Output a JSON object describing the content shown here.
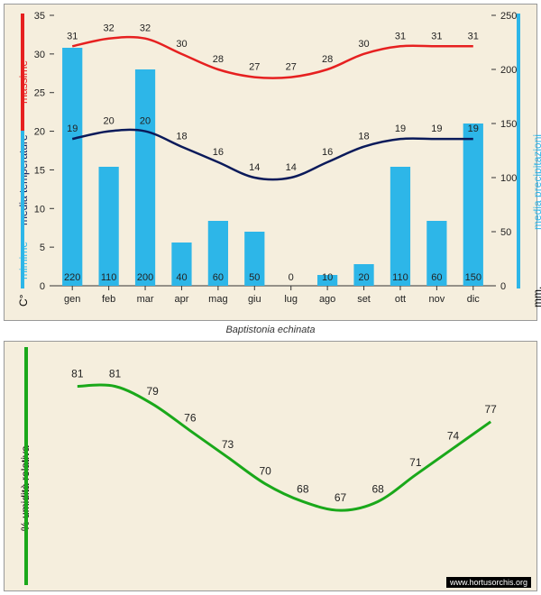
{
  "subtitle": "Baptistonia echinata",
  "watermark": "www.hortusorchis.org",
  "months": [
    "gen",
    "feb",
    "mar",
    "apr",
    "mag",
    "giu",
    "lug",
    "ago",
    "set",
    "ott",
    "nov",
    "dic"
  ],
  "top_chart": {
    "panel_bg": "#f5eedd",
    "max_color": "#e62020",
    "min_color": "#2db6e8",
    "avg_color": "#0a1a5a",
    "bar_color": "#2db6e8",
    "temp_label_c": "C°",
    "temp_label_min": "mimime",
    "temp_label_media": "media  temperature",
    "temp_label_max": "massime",
    "precip_label": "media  precipitazioni",
    "precip_label_mm": "mm.",
    "temp_ylim": [
      0,
      35
    ],
    "temp_ticks": [
      0,
      5,
      10,
      15,
      20,
      25,
      30,
      35
    ],
    "precip_ylim": [
      0,
      250
    ],
    "precip_ticks": [
      0,
      50,
      100,
      150,
      200,
      250
    ],
    "max_temps": [
      31,
      32,
      32,
      30,
      28,
      27,
      27,
      28,
      30,
      31,
      31,
      31
    ],
    "min_temps": [
      19,
      20,
      20,
      18,
      16,
      14,
      14,
      16,
      18,
      19,
      19,
      19
    ],
    "precip": [
      220,
      110,
      200,
      40,
      60,
      50,
      0,
      10,
      20,
      110,
      60,
      150
    ]
  },
  "bottom_chart": {
    "panel_bg": "#f5eedd",
    "line_color": "#1aa81a",
    "y_label": "%  umidità relativa",
    "humidity": [
      81,
      81,
      79,
      76,
      73,
      70,
      68,
      67,
      68,
      71,
      74,
      77
    ]
  }
}
